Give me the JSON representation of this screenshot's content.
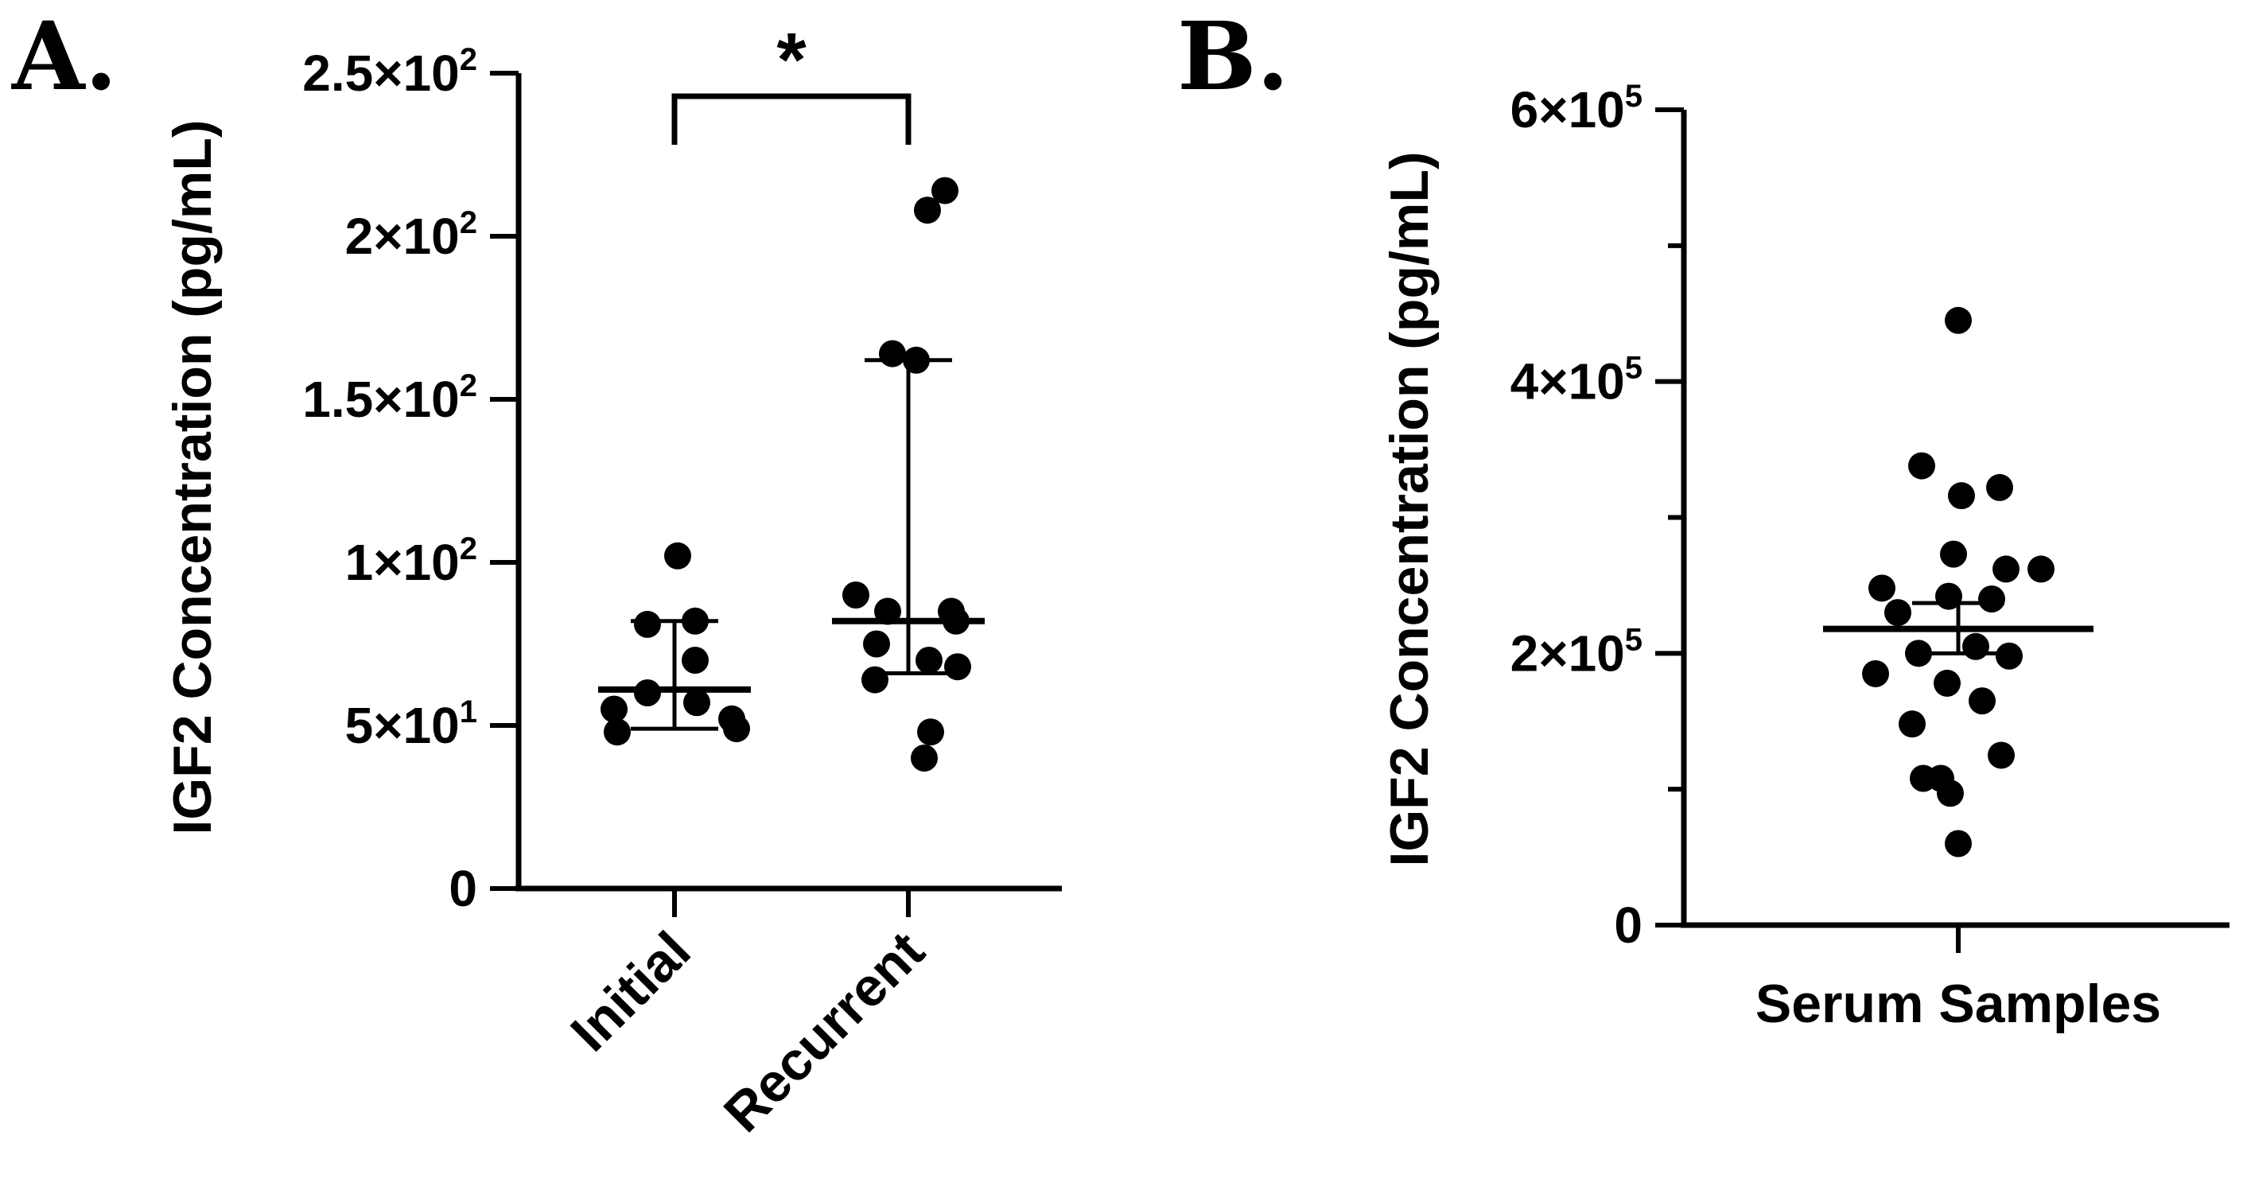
{
  "chart_data": [
    {
      "panel": "A.",
      "type": "scatter",
      "ylabel": "IGF2 Concentration (pg/mL)",
      "ylim": [
        0,
        250
      ],
      "yticks": [
        {
          "value": 0,
          "base": "0",
          "exp": ""
        },
        {
          "value": 50,
          "base": "5×10",
          "exp": "1"
        },
        {
          "value": 100,
          "base": "1×10",
          "exp": "2"
        },
        {
          "value": 150,
          "base": "1.5×10",
          "exp": "2"
        },
        {
          "value": 200,
          "base": "2×10",
          "exp": "2"
        },
        {
          "value": 250,
          "base": "2.5×10",
          "exp": "2"
        }
      ],
      "categories": [
        "Initial",
        "Recurrent"
      ],
      "series": [
        {
          "category": "Initial",
          "points": [
            102,
            82,
            81,
            70,
            60,
            57,
            55,
            52,
            48,
            49
          ],
          "median": 61,
          "iqr": [
            49,
            82
          ]
        },
        {
          "category": "Recurrent",
          "points": [
            214,
            208,
            164,
            162,
            90,
            85,
            85,
            82,
            75,
            70,
            68,
            64,
            48,
            40
          ],
          "median": 82,
          "iqr": [
            66,
            162
          ]
        }
      ],
      "significance": {
        "between": [
          "Initial",
          "Recurrent"
        ],
        "label": "*"
      }
    },
    {
      "panel": "B.",
      "type": "scatter",
      "ylabel": "IGF2 Concentration (pg/mL)",
      "ylim": [
        0,
        600000
      ],
      "yticks": [
        {
          "value": 0,
          "base": "0",
          "exp": ""
        },
        {
          "value": 200000,
          "base": "2×10",
          "exp": "5"
        },
        {
          "value": 400000,
          "base": "4×10",
          "exp": "5"
        },
        {
          "value": 600000,
          "base": "6×10",
          "exp": "5"
        }
      ],
      "categories": [
        "Serum Samples"
      ],
      "series": [
        {
          "category": "Serum Samples",
          "points": [
            445000,
            338000,
            322000,
            316000,
            273000,
            262000,
            262000,
            248000,
            242000,
            240000,
            230000,
            205000,
            200000,
            198000,
            185000,
            178000,
            165000,
            148000,
            125000,
            108000,
            108000,
            97000,
            60000
          ],
          "mean": 218000,
          "sem": [
            200000,
            237000
          ]
        }
      ]
    }
  ]
}
